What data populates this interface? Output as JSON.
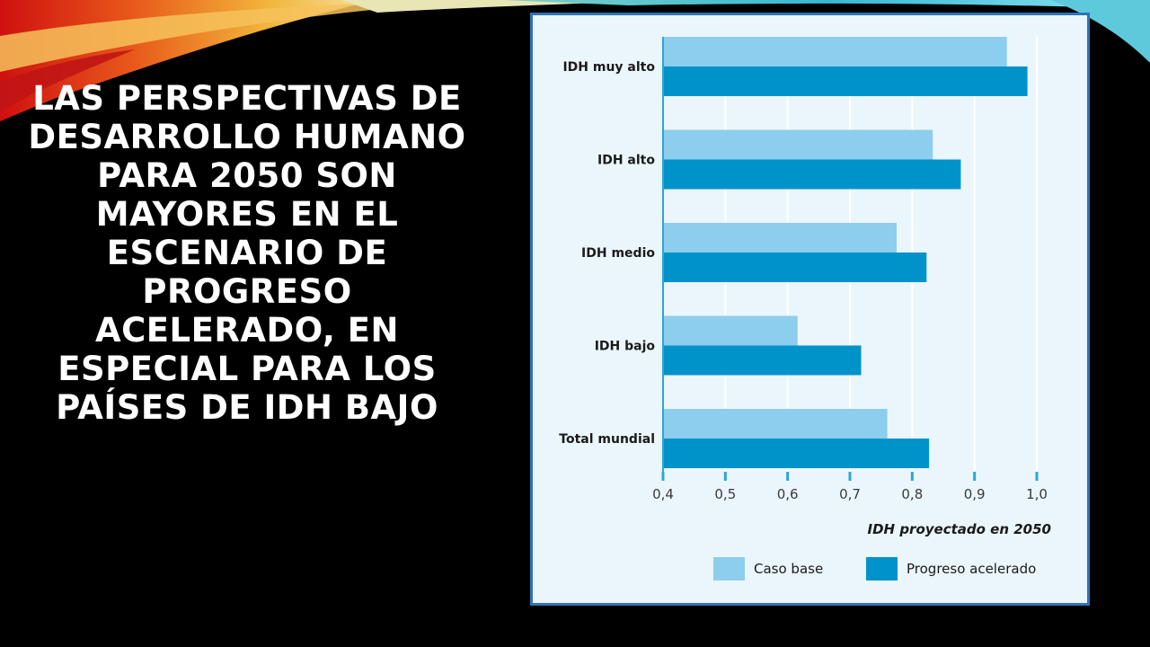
{
  "slide": {
    "title": "LAS PERSPECTIVAS DE DESARROLLO HUMANO PARA 2050 SON MAYORES EN EL ESCENARIO DE PROGRESO ACELERADO, EN ESPECIAL PARA LOS PAÍSES DE IDH BAJO"
  },
  "colors": {
    "series_base": "#8dcdee",
    "series_accelerated": "#0093c9",
    "axis": "#29a7d6",
    "grid": "#ffffff",
    "frame": "#2e74b5"
  },
  "chart_data": {
    "type": "bar",
    "orientation": "horizontal",
    "categories": [
      "IDH muy alto",
      "IDH alto",
      "IDH medio",
      "IDH bajo",
      "Total mundial"
    ],
    "series": [
      {
        "name": "Caso base",
        "values": [
          0.952,
          0.833,
          0.775,
          0.616,
          0.76
        ]
      },
      {
        "name": "Progreso acelerado",
        "values": [
          0.985,
          0.878,
          0.823,
          0.718,
          0.827
        ]
      }
    ],
    "xlim": [
      0.4,
      1.0
    ],
    "ticks": [
      0.4,
      0.5,
      0.6,
      0.7,
      0.8,
      0.9,
      1.0
    ],
    "tick_labels": [
      "0,4",
      "0,5",
      "0,6",
      "0,7",
      "0,8",
      "0,9",
      "1,0"
    ],
    "xlabel": "IDH proyectado en 2050",
    "ylabel": "",
    "grid": true,
    "legend": "bottom"
  }
}
